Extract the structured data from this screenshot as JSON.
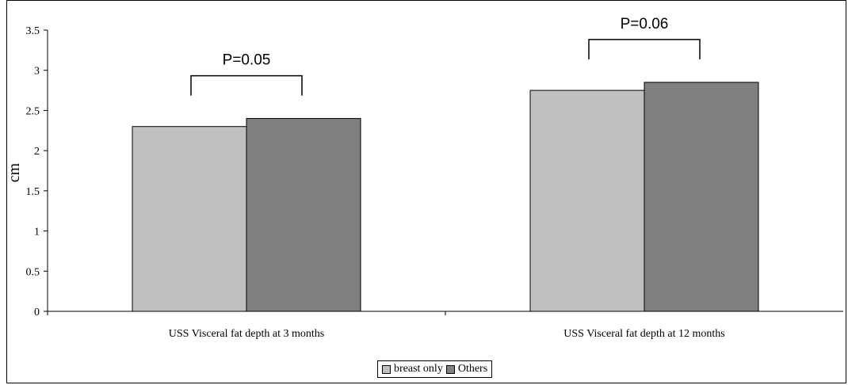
{
  "chart_data": {
    "type": "bar",
    "categories": [
      "USS Visceral fat depth at 3 months",
      "USS Visceral fat depth at 12 months"
    ],
    "series": [
      {
        "name": "breast only",
        "values": [
          2.3,
          2.75
        ],
        "color": "#c0c0c0"
      },
      {
        "name": "Others",
        "values": [
          2.4,
          2.85
        ],
        "color": "#808080"
      }
    ],
    "ylabel": "cm",
    "ylim": [
      0,
      3.5
    ],
    "yticks": [
      "0",
      "0.5",
      "1",
      "1.5",
      "2",
      "2.5",
      "3",
      "3.5"
    ],
    "grid": false,
    "legend_position": "bottom",
    "annotations": [
      "P=0.05",
      "P=0.06"
    ]
  }
}
